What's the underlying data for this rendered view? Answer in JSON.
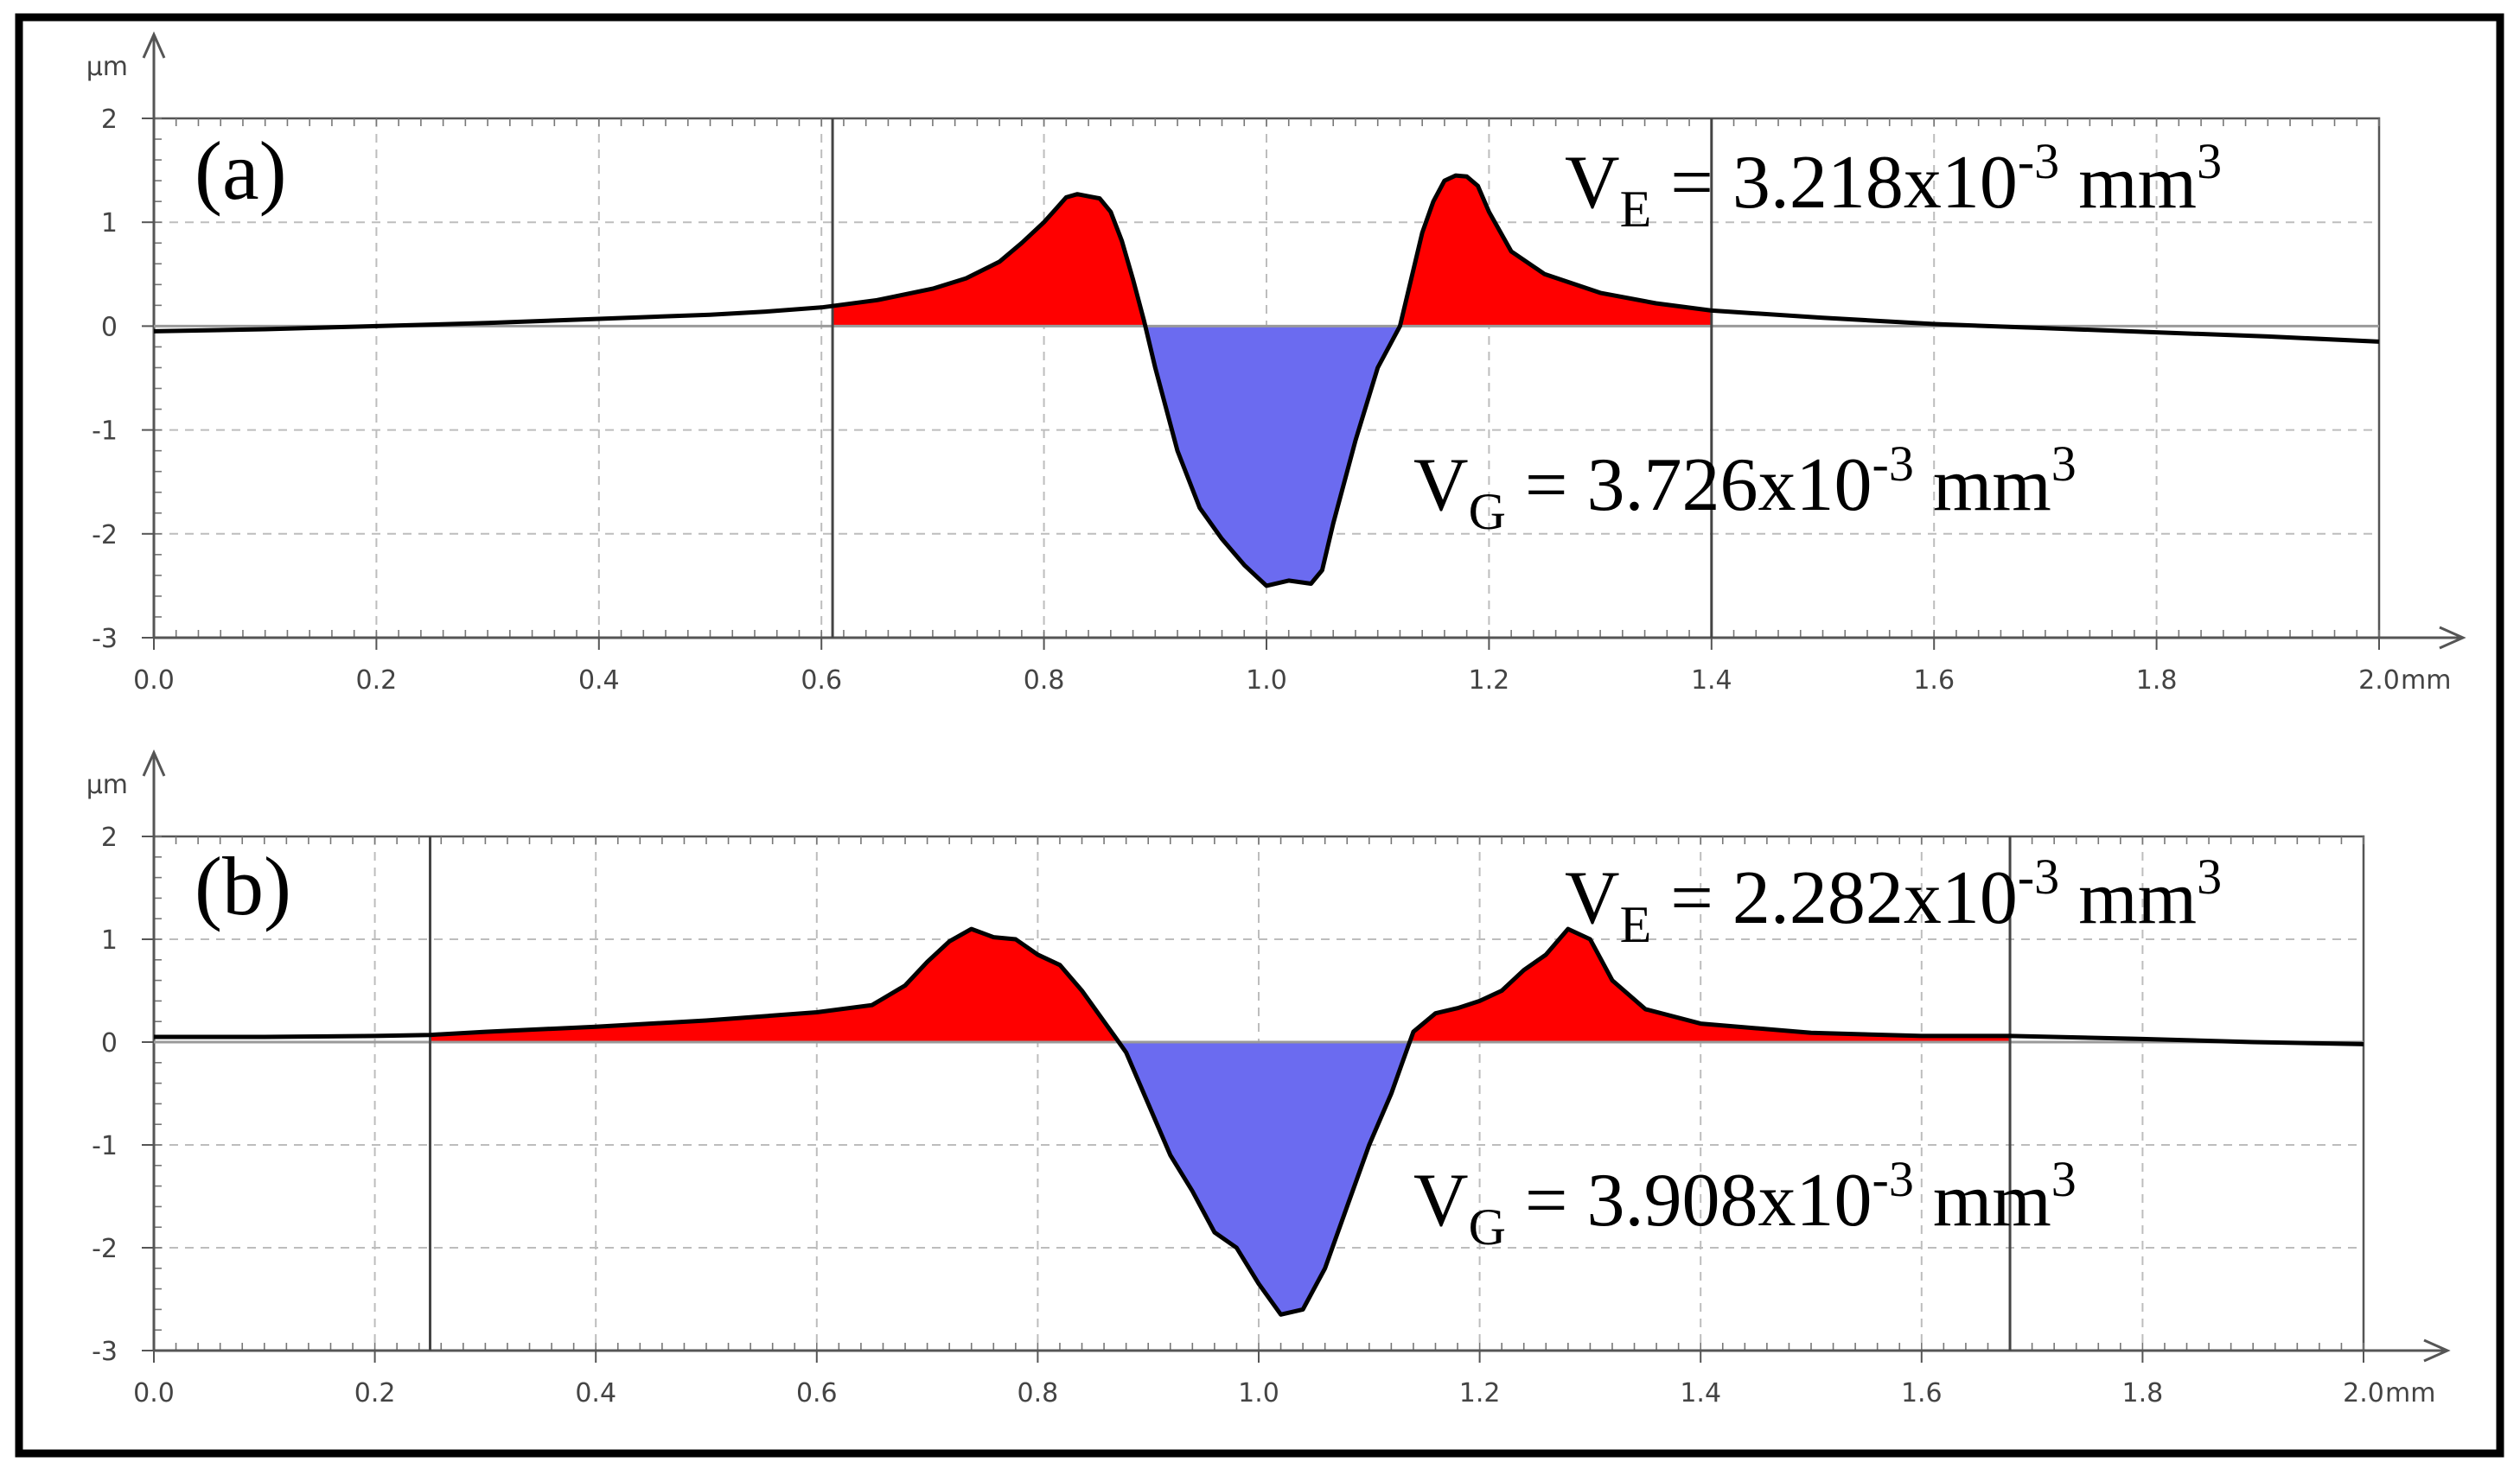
{
  "chart_data": [
    {
      "type": "area",
      "panel_label": "(a)",
      "y_unit": "µm",
      "x_unit": "mm",
      "xlim": [
        0.0,
        2.0
      ],
      "ylim": [
        -3,
        2
      ],
      "x_tick_labels": [
        "0.0",
        "0.2",
        "0.4",
        "0.6",
        "0.8",
        "1.0",
        "1.2",
        "1.4",
        "1.6",
        "1.8",
        "2.0"
      ],
      "y_tick_labels": [
        "2",
        "1",
        "0",
        "-1",
        "-2",
        "-3"
      ],
      "grid": true,
      "integration_limits_mm": [
        0.61,
        1.4
      ],
      "annotations": [
        {
          "symbol": "V",
          "subscript": "E",
          "text": " = 3.218x10",
          "exponent": "-3",
          "unit": " mm",
          "unit_exponent": "3"
        },
        {
          "symbol": "V",
          "subscript": "G",
          "text": " = 3.726x10",
          "exponent": "-3",
          "unit": " mm",
          "unit_exponent": "3"
        }
      ],
      "profile": {
        "x": [
          0.0,
          0.1,
          0.2,
          0.3,
          0.4,
          0.5,
          0.55,
          0.6,
          0.65,
          0.7,
          0.73,
          0.76,
          0.78,
          0.8,
          0.81,
          0.82,
          0.83,
          0.84,
          0.85,
          0.86,
          0.87,
          0.88,
          0.89,
          0.9,
          0.92,
          0.94,
          0.96,
          0.98,
          1.0,
          1.02,
          1.04,
          1.05,
          1.06,
          1.08,
          1.1,
          1.12,
          1.13,
          1.14,
          1.15,
          1.16,
          1.17,
          1.18,
          1.19,
          1.2,
          1.22,
          1.25,
          1.3,
          1.35,
          1.4,
          1.5,
          1.6,
          1.7,
          1.8,
          1.9,
          2.0
        ],
        "y": [
          -0.05,
          -0.03,
          0.0,
          0.03,
          0.07,
          0.11,
          0.14,
          0.18,
          0.25,
          0.36,
          0.46,
          0.62,
          0.8,
          1.0,
          1.12,
          1.24,
          1.27,
          1.25,
          1.23,
          1.1,
          0.82,
          0.45,
          0.05,
          -0.4,
          -1.2,
          -1.75,
          -2.05,
          -2.3,
          -2.5,
          -2.45,
          -2.48,
          -2.35,
          -1.9,
          -1.1,
          -0.4,
          0.0,
          0.45,
          0.9,
          1.2,
          1.4,
          1.45,
          1.44,
          1.35,
          1.1,
          0.72,
          0.5,
          0.32,
          0.22,
          0.15,
          0.08,
          0.02,
          -0.02,
          -0.06,
          -0.1,
          -0.15
        ]
      }
    },
    {
      "type": "area",
      "panel_label": "(b)",
      "y_unit": "µm",
      "x_unit": "mm",
      "xlim": [
        0.0,
        2.0
      ],
      "ylim": [
        -3,
        2
      ],
      "x_tick_labels": [
        "0.0",
        "0.2",
        "0.4",
        "0.6",
        "0.8",
        "1.0",
        "1.2",
        "1.4",
        "1.6",
        "1.8",
        "2.0"
      ],
      "y_tick_labels": [
        "2",
        "1",
        "0",
        "-1",
        "-2",
        "-3"
      ],
      "grid": true,
      "integration_limits_mm": [
        0.25,
        1.68
      ],
      "annotations": [
        {
          "symbol": "V",
          "subscript": "E",
          "text": " = 2.282x10",
          "exponent": "-3",
          "unit": " mm",
          "unit_exponent": "3"
        },
        {
          "symbol": "V",
          "subscript": "G",
          "text": " = 3.908x10",
          "exponent": "-3",
          "unit": " mm",
          "unit_exponent": "3"
        }
      ],
      "profile": {
        "x": [
          0.0,
          0.1,
          0.2,
          0.25,
          0.3,
          0.4,
          0.5,
          0.6,
          0.65,
          0.68,
          0.7,
          0.72,
          0.74,
          0.76,
          0.78,
          0.8,
          0.82,
          0.84,
          0.86,
          0.87,
          0.88,
          0.9,
          0.92,
          0.94,
          0.96,
          0.98,
          1.0,
          1.02,
          1.04,
          1.06,
          1.08,
          1.1,
          1.12,
          1.13,
          1.14,
          1.16,
          1.18,
          1.2,
          1.22,
          1.24,
          1.26,
          1.28,
          1.3,
          1.32,
          1.35,
          1.4,
          1.5,
          1.6,
          1.68,
          1.8,
          1.9,
          2.0
        ],
        "y": [
          0.05,
          0.05,
          0.06,
          0.07,
          0.1,
          0.15,
          0.21,
          0.29,
          0.36,
          0.55,
          0.78,
          0.98,
          1.1,
          1.02,
          1.0,
          0.85,
          0.75,
          0.5,
          0.2,
          0.05,
          -0.1,
          -0.6,
          -1.1,
          -1.45,
          -1.85,
          -2.0,
          -2.35,
          -2.65,
          -2.6,
          -2.2,
          -1.6,
          -1.0,
          -0.5,
          -0.2,
          0.1,
          0.28,
          0.33,
          0.4,
          0.5,
          0.7,
          0.85,
          1.1,
          1.0,
          0.6,
          0.32,
          0.18,
          0.09,
          0.06,
          0.06,
          0.03,
          0.0,
          -0.02
        ]
      }
    }
  ]
}
